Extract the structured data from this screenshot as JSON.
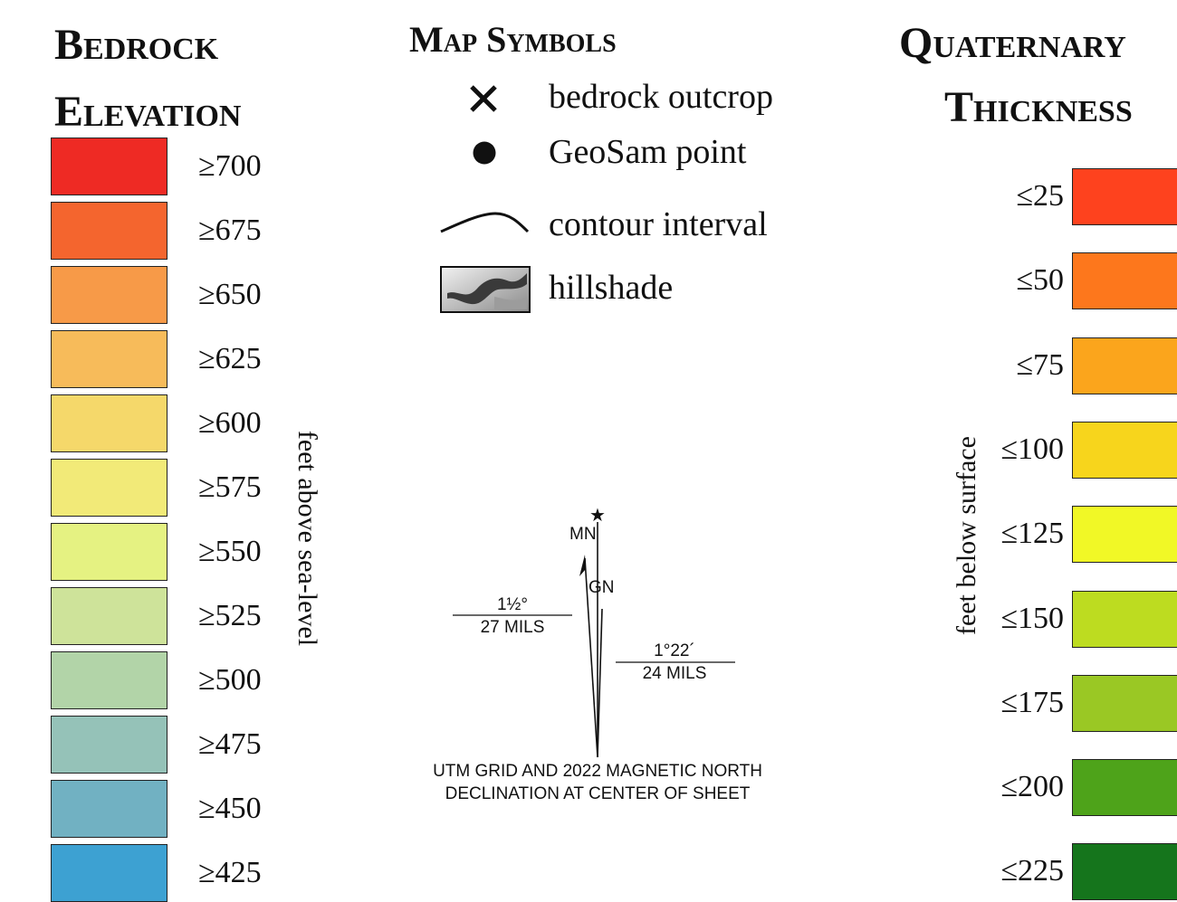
{
  "bedrock": {
    "title_line1": "Bedrock",
    "title_line2": "Elevation",
    "axis_label": "feet above sea-level",
    "items": [
      {
        "label": "≥700",
        "color": "#ee2a24"
      },
      {
        "label": "≥675",
        "color": "#f4652e"
      },
      {
        "label": "≥650",
        "color": "#f79a48"
      },
      {
        "label": "≥625",
        "color": "#f7bb5a"
      },
      {
        "label": "≥600",
        "color": "#f5d86a"
      },
      {
        "label": "≥575",
        "color": "#f2ea78"
      },
      {
        "label": "≥550",
        "color": "#e5f282"
      },
      {
        "label": "≥525",
        "color": "#cee39a"
      },
      {
        "label": "≥500",
        "color": "#b2d4a8"
      },
      {
        "label": "≥475",
        "color": "#95c2b8"
      },
      {
        "label": "≥450",
        "color": "#71b1c2"
      },
      {
        "label": "≥425",
        "color": "#3da1d2"
      }
    ]
  },
  "symbols": {
    "title": "Map Symbols",
    "items": [
      {
        "icon": "x-mark-icon",
        "label": "bedrock outcrop"
      },
      {
        "icon": "dot-icon",
        "label": "GeoSam point"
      },
      {
        "icon": "contour-line-icon",
        "label": "contour interval"
      },
      {
        "icon": "hillshade-icon",
        "label": "hillshade"
      }
    ]
  },
  "declination": {
    "mn_label": "MN",
    "gn_label": "GN",
    "left_top": "1½°",
    "left_bottom": "27 MILS",
    "right_top": "1°22´",
    "right_bottom": "24 MILS",
    "caption_line1": "UTM GRID AND 2022 MAGNETIC NORTH",
    "caption_line2": "DECLINATION AT CENTER OF SHEET"
  },
  "quaternary": {
    "title_line1": "Quaternary",
    "title_line2": "Thickness",
    "axis_label": "feet below surface",
    "items": [
      {
        "label": "≤25",
        "color": "#fe421e"
      },
      {
        "label": "≤50",
        "color": "#fd771c"
      },
      {
        "label": "≤75",
        "color": "#fba51c"
      },
      {
        "label": "≤100",
        "color": "#f7d51c"
      },
      {
        "label": "≤125",
        "color": "#f1f826"
      },
      {
        "label": "≤150",
        "color": "#bddc20"
      },
      {
        "label": "≤175",
        "color": "#9ac824"
      },
      {
        "label": "≤200",
        "color": "#4ea31a"
      },
      {
        "label": "≤225",
        "color": "#15751c"
      }
    ]
  }
}
